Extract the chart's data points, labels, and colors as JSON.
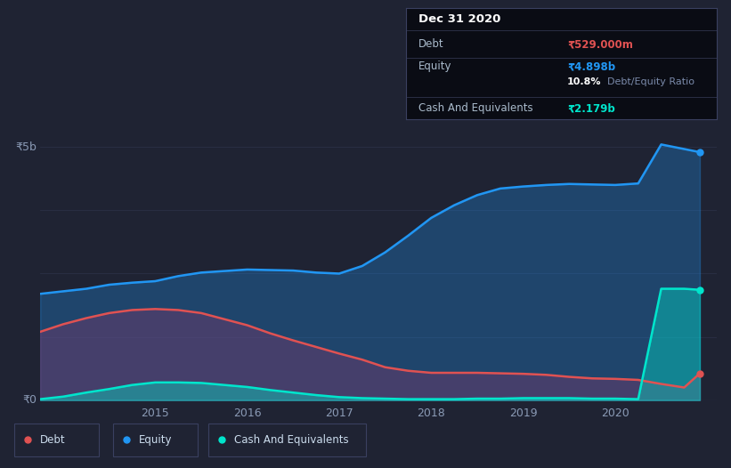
{
  "bg_color": "#1f2333",
  "chart_bg": "#1f2333",
  "grid_color": "#2a2f45",
  "y_label_top": "₹5b",
  "y_label_bottom": "₹0",
  "x_ticks": [
    2015,
    2016,
    2017,
    2018,
    2019,
    2020
  ],
  "equity_color": "#2196f3",
  "debt_color": "#e05252",
  "cash_color": "#00e5cc",
  "tooltip": {
    "date": "Dec 31 2020",
    "debt_label": "Debt",
    "debt_value": "₹529.000m",
    "debt_color": "#e05252",
    "equity_label": "Equity",
    "equity_value": "₹4.898b",
    "equity_color": "#2196f3",
    "ratio_bold": "10.8%",
    "ratio_text": "Debt/Equity Ratio",
    "cash_label": "Cash And Equivalents",
    "cash_value": "₹2.179b",
    "cash_color": "#00e5cc",
    "bg": "#0a0c14",
    "border": "#2e3450"
  },
  "legend": [
    {
      "label": "Debt",
      "color": "#e05252"
    },
    {
      "label": "Equity",
      "color": "#2196f3"
    },
    {
      "label": "Cash And Equivalents",
      "color": "#00e5cc"
    }
  ],
  "x_data": [
    2013.75,
    2014.0,
    2014.25,
    2014.5,
    2014.75,
    2015.0,
    2015.25,
    2015.5,
    2015.75,
    2016.0,
    2016.25,
    2016.5,
    2016.75,
    2017.0,
    2017.25,
    2017.5,
    2017.75,
    2018.0,
    2018.25,
    2018.5,
    2018.75,
    2019.0,
    2019.25,
    2019.5,
    2019.75,
    2020.0,
    2020.25,
    2020.5,
    2020.75,
    2020.92
  ],
  "equity_data": [
    2.1,
    2.15,
    2.2,
    2.28,
    2.32,
    2.35,
    2.45,
    2.52,
    2.55,
    2.58,
    2.57,
    2.56,
    2.52,
    2.5,
    2.65,
    2.92,
    3.25,
    3.6,
    3.85,
    4.05,
    4.18,
    4.22,
    4.25,
    4.27,
    4.26,
    4.25,
    4.28,
    5.05,
    4.96,
    4.898
  ],
  "debt_data": [
    1.35,
    1.5,
    1.62,
    1.72,
    1.78,
    1.8,
    1.78,
    1.72,
    1.6,
    1.48,
    1.32,
    1.18,
    1.05,
    0.92,
    0.8,
    0.65,
    0.58,
    0.54,
    0.54,
    0.54,
    0.53,
    0.52,
    0.5,
    0.46,
    0.43,
    0.42,
    0.4,
    0.32,
    0.25,
    0.529
  ],
  "cash_data": [
    0.02,
    0.07,
    0.15,
    0.22,
    0.3,
    0.35,
    0.35,
    0.34,
    0.3,
    0.26,
    0.2,
    0.15,
    0.1,
    0.06,
    0.04,
    0.03,
    0.02,
    0.02,
    0.02,
    0.03,
    0.03,
    0.04,
    0.04,
    0.04,
    0.03,
    0.03,
    0.02,
    2.2,
    2.2,
    2.179
  ],
  "ylim": [
    0,
    5.5
  ],
  "xlim": [
    2013.75,
    2021.1
  ]
}
